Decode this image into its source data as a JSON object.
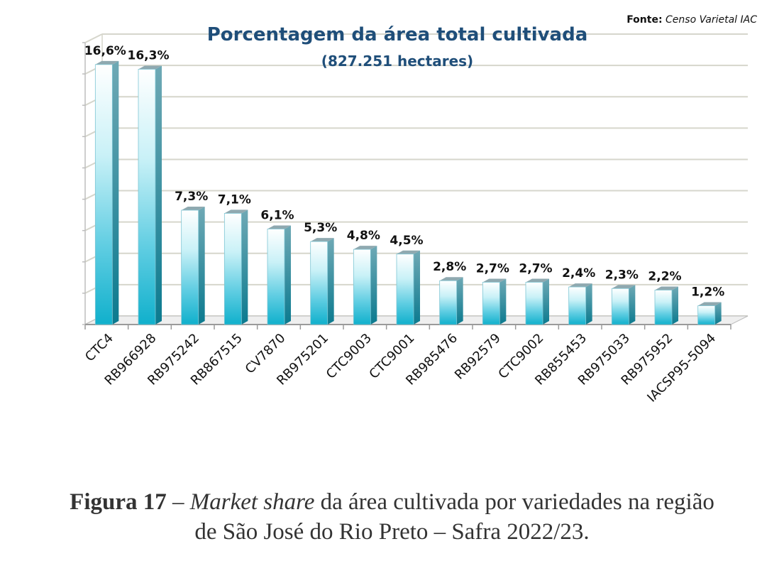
{
  "source": {
    "label": "Fonte:",
    "text": "Censo Varietal  IAC"
  },
  "caption": {
    "figure": "Figura 17",
    "dash": " – ",
    "italic": "Market share",
    "rest1": " da área cultivada por variedades na região",
    "rest2": "de São José do Rio Preto – Safra 2022/23."
  },
  "chart_data": {
    "type": "bar",
    "title": "Porcentagem da área total cultivada",
    "subtitle": "(827.251 hectares)",
    "categories": [
      "CTC4",
      "RB966928",
      "RB975242",
      "RB867515",
      "CV7870",
      "RB975201",
      "CTC9003",
      "CTC9001",
      "RB985476",
      "RB92579",
      "CTC9002",
      "RB855453",
      "RB975033",
      "RB975952",
      "IACSP95-5094"
    ],
    "values": [
      16.6,
      16.3,
      7.3,
      7.1,
      6.1,
      5.3,
      4.8,
      4.5,
      2.8,
      2.7,
      2.7,
      2.4,
      2.3,
      2.2,
      1.2
    ],
    "value_labels": [
      "16,6%",
      "16,3%",
      "7,3%",
      "7,1%",
      "6,1%",
      "5,3%",
      "4,8%",
      "4,5%",
      "2,8%",
      "2,7%",
      "2,7%",
      "2,4%",
      "2,3%",
      "2,2%",
      "1,2%"
    ],
    "ylim": [
      0,
      18
    ],
    "grid": true,
    "legend": "none",
    "colors": {
      "bar_top": "#ffffff",
      "bar_mid": "#9fe3ef",
      "bar_bottom": "#12b3cf",
      "bar_side": "#0d7f94",
      "title": "#1f4e79",
      "grid": "#d4d4cc"
    }
  }
}
